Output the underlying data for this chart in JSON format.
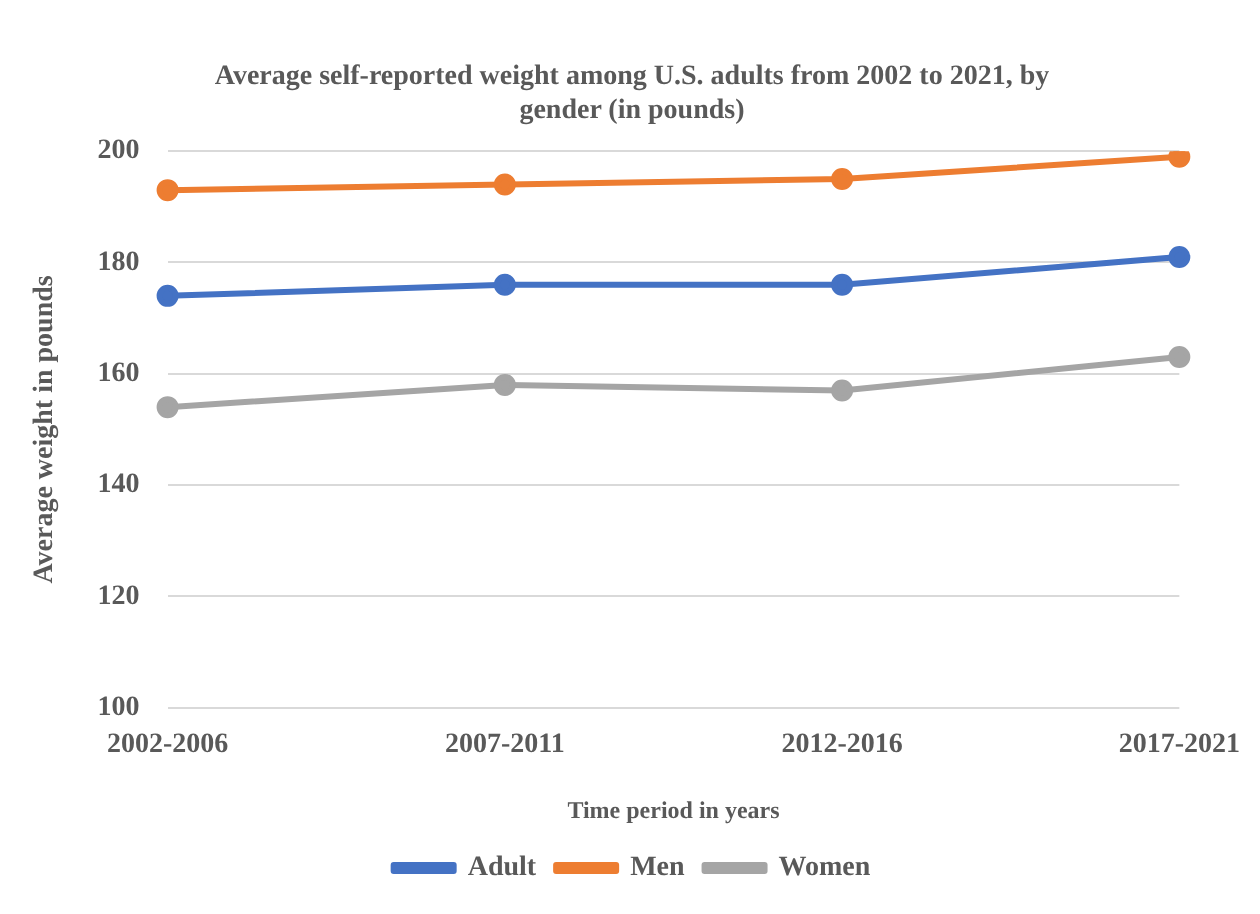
{
  "chart_data": {
    "type": "line",
    "title": "Average self-reported weight among U.S. adults from 2002 to 2021, by gender (in pounds)",
    "xlabel": "Time period in years",
    "ylabel": "Average weight in pounds",
    "categories": [
      "2002-2006",
      "2007-2011",
      "2012-2016",
      "2017-2021"
    ],
    "series": [
      {
        "name": "Adult",
        "color": "#4472c4",
        "values": [
          174,
          176,
          176,
          181
        ]
      },
      {
        "name": "Men",
        "color": "#ed7d31",
        "values": [
          193,
          194,
          195,
          199
        ]
      },
      {
        "name": "Women",
        "color": "#a5a5a5",
        "values": [
          154,
          158,
          157,
          163
        ]
      }
    ],
    "ylim": [
      100,
      200
    ],
    "yticks": [
      100,
      120,
      140,
      160,
      180,
      200
    ],
    "grid": "y",
    "legend": "bottom",
    "marker": "circle",
    "line_style": "solid"
  }
}
